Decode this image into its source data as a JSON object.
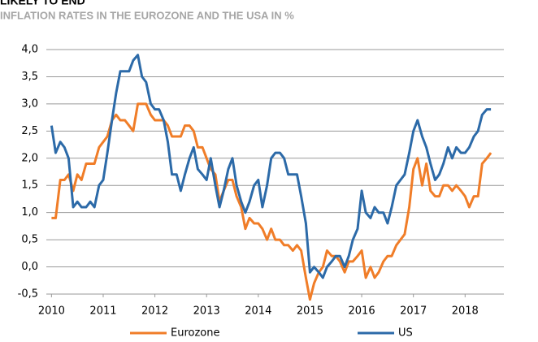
{
  "chart_data": {
    "type": "line",
    "title": "LIKELY TO END",
    "subtitle": "INFLATION RATES IN THE EUROZONE AND THE USA IN %",
    "x": [
      2010,
      2010.08,
      2010.17,
      2010.25,
      2010.33,
      2010.42,
      2010.5,
      2010.58,
      2010.67,
      2010.75,
      2010.83,
      2010.92,
      2011,
      2011.08,
      2011.17,
      2011.25,
      2011.33,
      2011.42,
      2011.5,
      2011.58,
      2011.67,
      2011.75,
      2011.83,
      2011.92,
      2012,
      2012.08,
      2012.17,
      2012.25,
      2012.33,
      2012.42,
      2012.5,
      2012.58,
      2012.67,
      2012.75,
      2012.83,
      2012.92,
      2013,
      2013.08,
      2013.17,
      2013.25,
      2013.33,
      2013.42,
      2013.5,
      2013.58,
      2013.67,
      2013.75,
      2013.83,
      2013.92,
      2014,
      2014.08,
      2014.17,
      2014.25,
      2014.33,
      2014.42,
      2014.5,
      2014.58,
      2014.67,
      2014.75,
      2014.83,
      2014.92,
      2015,
      2015.08,
      2015.17,
      2015.25,
      2015.33,
      2015.42,
      2015.5,
      2015.58,
      2015.67,
      2015.75,
      2015.83,
      2015.92,
      2016,
      2016.08,
      2016.17,
      2016.25,
      2016.33,
      2016.42,
      2016.5,
      2016.58,
      2016.67,
      2016.75,
      2016.83,
      2016.92,
      2017,
      2017.08,
      2017.17,
      2017.25,
      2017.33,
      2017.42,
      2017.5,
      2017.58,
      2017.67,
      2017.75,
      2017.83,
      2017.92,
      2018,
      2018.08,
      2018.17,
      2018.25,
      2018.33,
      2018.42,
      2018.5
    ],
    "series": [
      {
        "name": "Eurozone",
        "color": "#f07d28",
        "values": [
          0.9,
          0.9,
          1.6,
          1.6,
          1.7,
          1.4,
          1.7,
          1.6,
          1.9,
          1.9,
          1.9,
          2.2,
          2.3,
          2.4,
          2.7,
          2.8,
          2.7,
          2.7,
          2.6,
          2.5,
          3.0,
          3.0,
          3.0,
          2.8,
          2.7,
          2.7,
          2.7,
          2.6,
          2.4,
          2.4,
          2.4,
          2.6,
          2.6,
          2.5,
          2.2,
          2.2,
          2.0,
          1.8,
          1.7,
          1.2,
          1.4,
          1.6,
          1.6,
          1.3,
          1.1,
          0.7,
          0.9,
          0.8,
          0.8,
          0.7,
          0.5,
          0.7,
          0.5,
          0.5,
          0.4,
          0.4,
          0.3,
          0.4,
          0.3,
          -0.2,
          -0.6,
          -0.3,
          -0.1,
          0.0,
          0.3,
          0.2,
          0.2,
          0.1,
          -0.1,
          0.1,
          0.1,
          0.2,
          0.3,
          -0.2,
          0.0,
          -0.2,
          -0.1,
          0.1,
          0.2,
          0.2,
          0.4,
          0.5,
          0.6,
          1.1,
          1.8,
          2.0,
          1.5,
          1.9,
          1.4,
          1.3,
          1.3,
          1.5,
          1.5,
          1.4,
          1.5,
          1.4,
          1.3,
          1.1,
          1.3,
          1.3,
          1.9,
          2.0,
          2.1
        ]
      },
      {
        "name": "US",
        "color": "#2c6aa8",
        "values": [
          2.6,
          2.1,
          2.3,
          2.2,
          2.0,
          1.1,
          1.2,
          1.1,
          1.1,
          1.2,
          1.1,
          1.5,
          1.6,
          2.1,
          2.7,
          3.2,
          3.6,
          3.6,
          3.6,
          3.8,
          3.9,
          3.5,
          3.4,
          3.0,
          2.9,
          2.9,
          2.7,
          2.3,
          1.7,
          1.7,
          1.4,
          1.7,
          2.0,
          2.2,
          1.8,
          1.7,
          1.6,
          2.0,
          1.5,
          1.1,
          1.4,
          1.8,
          2.0,
          1.5,
          1.2,
          1.0,
          1.2,
          1.5,
          1.6,
          1.1,
          1.5,
          2.0,
          2.1,
          2.1,
          2.0,
          1.7,
          1.7,
          1.7,
          1.3,
          0.8,
          -0.1,
          0.0,
          -0.1,
          -0.2,
          0.0,
          0.1,
          0.2,
          0.2,
          0.0,
          0.2,
          0.5,
          0.7,
          1.4,
          1.0,
          0.9,
          1.1,
          1.0,
          1.0,
          0.8,
          1.1,
          1.5,
          1.6,
          1.7,
          2.1,
          2.5,
          2.7,
          2.4,
          2.2,
          1.9,
          1.6,
          1.7,
          1.9,
          2.2,
          2.0,
          2.2,
          2.1,
          2.1,
          2.2,
          2.4,
          2.5,
          2.8,
          2.9,
          2.9
        ]
      }
    ],
    "xlim": [
      2009.9,
      2018.75
    ],
    "xticks": [
      2010,
      2011,
      2012,
      2013,
      2014,
      2015,
      2016,
      2017,
      2018
    ],
    "ylim": [
      -0.5,
      4.0
    ],
    "yticks": [
      {
        "value": -0.5,
        "label": "-0,5"
      },
      {
        "value": 0,
        "label": "0,0"
      },
      {
        "value": 0.5,
        "label": "0,5"
      },
      {
        "value": 1,
        "label": "1,0"
      },
      {
        "value": 1.5,
        "label": "1,5"
      },
      {
        "value": 2,
        "label": "2,0"
      },
      {
        "value": 2.5,
        "label": "2,5"
      },
      {
        "value": 3,
        "label": "3,0"
      },
      {
        "value": 3.5,
        "label": "3,5"
      },
      {
        "value": 4,
        "label": "4,0"
      }
    ],
    "grid": true
  }
}
